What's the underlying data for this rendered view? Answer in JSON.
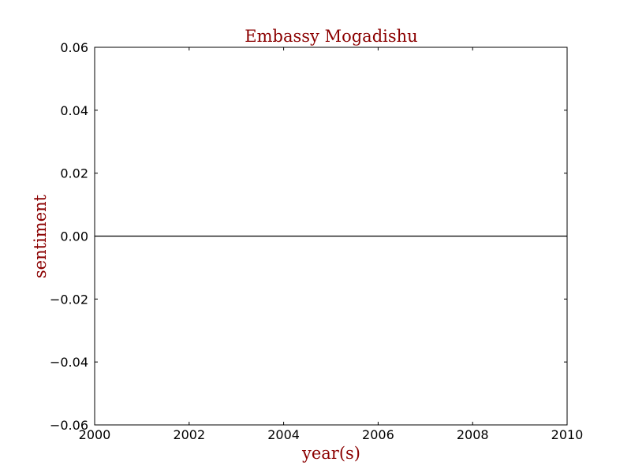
{
  "chart_data": {
    "type": "line",
    "title": "Embassy Mogadishu",
    "xlabel": "year(s)",
    "ylabel": "sentiment",
    "xlim": [
      2000,
      2010
    ],
    "ylim": [
      -0.06,
      0.06
    ],
    "x_ticks": [
      2000,
      2002,
      2004,
      2006,
      2008,
      2010
    ],
    "y_ticks": [
      -0.06,
      -0.04,
      -0.02,
      0.0,
      0.02,
      0.04,
      0.06
    ],
    "x_tick_labels": [
      "2000",
      "2002",
      "2004",
      "2006",
      "2008",
      "2010"
    ],
    "y_tick_labels": [
      "−0.06",
      "−0.04",
      "−0.02",
      "0.00",
      "0.02",
      "0.04",
      "0.06"
    ],
    "series": [
      {
        "x": [
          2000,
          2010
        ],
        "y": [
          0,
          0
        ],
        "color": "#000000"
      }
    ],
    "grid": false,
    "legend": "none",
    "colors": {
      "title": "#8b0000",
      "axis_label": "#8b0000",
      "line": "#000000",
      "frame": "#000000"
    }
  }
}
